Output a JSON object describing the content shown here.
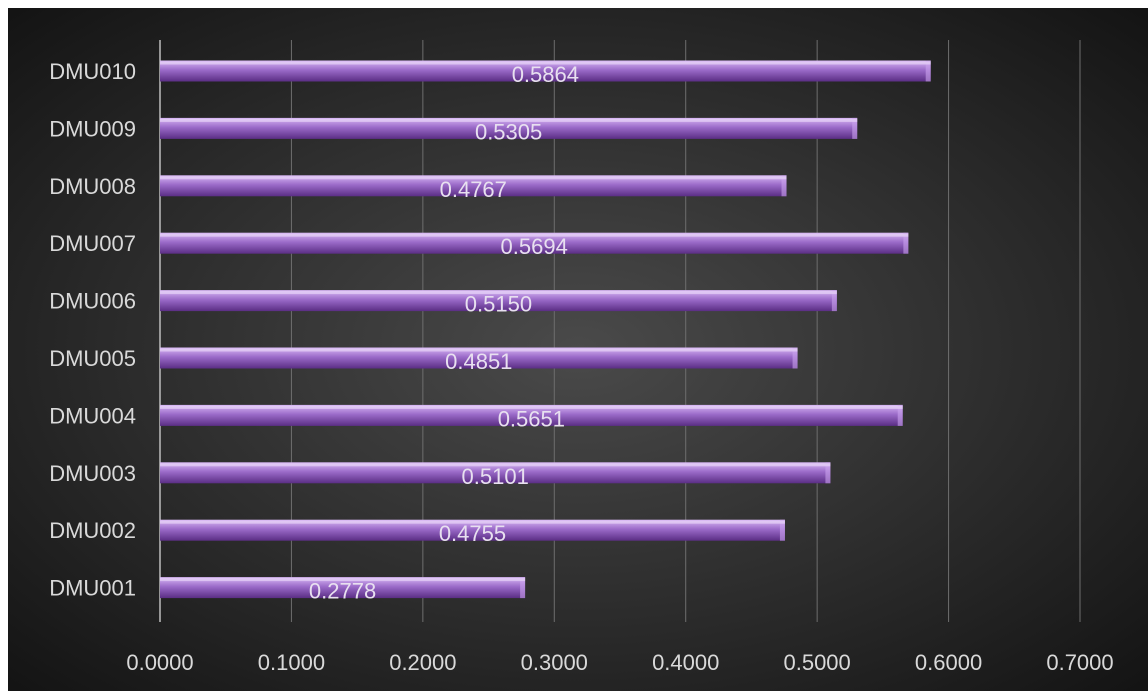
{
  "chart_data": {
    "type": "bar",
    "orientation": "horizontal",
    "categories": [
      "DMU001",
      "DMU002",
      "DMU003",
      "DMU004",
      "DMU005",
      "DMU006",
      "DMU007",
      "DMU008",
      "DMU009",
      "DMU010"
    ],
    "values": [
      0.2778,
      0.4755,
      0.5101,
      0.5651,
      0.4851,
      0.515,
      0.5694,
      0.4767,
      0.5305,
      0.5864
    ],
    "value_labels": [
      "0.2778",
      "0.4755",
      "0.5101",
      "0.5651",
      "0.4851",
      "0.5150",
      "0.5694",
      "0.4767",
      "0.5305",
      "0.5864"
    ],
    "x_ticks": [
      "0.0000",
      "0.1000",
      "0.2000",
      "0.3000",
      "0.4000",
      "0.5000",
      "0.6000",
      "0.7000"
    ],
    "xlim": [
      0,
      0.7
    ],
    "title": "",
    "xlabel": "",
    "ylabel": "",
    "grid": "vertical",
    "legend": "none",
    "colors": {
      "background_center": "#4a4a4a",
      "background_edge": "#141414",
      "bar_top": "#d9b8f5",
      "bar_mid": "#9b6bc9",
      "bar_bottom": "#5b2e85",
      "gridline": "#6e6e6e",
      "text": "#d9d9d9"
    }
  }
}
